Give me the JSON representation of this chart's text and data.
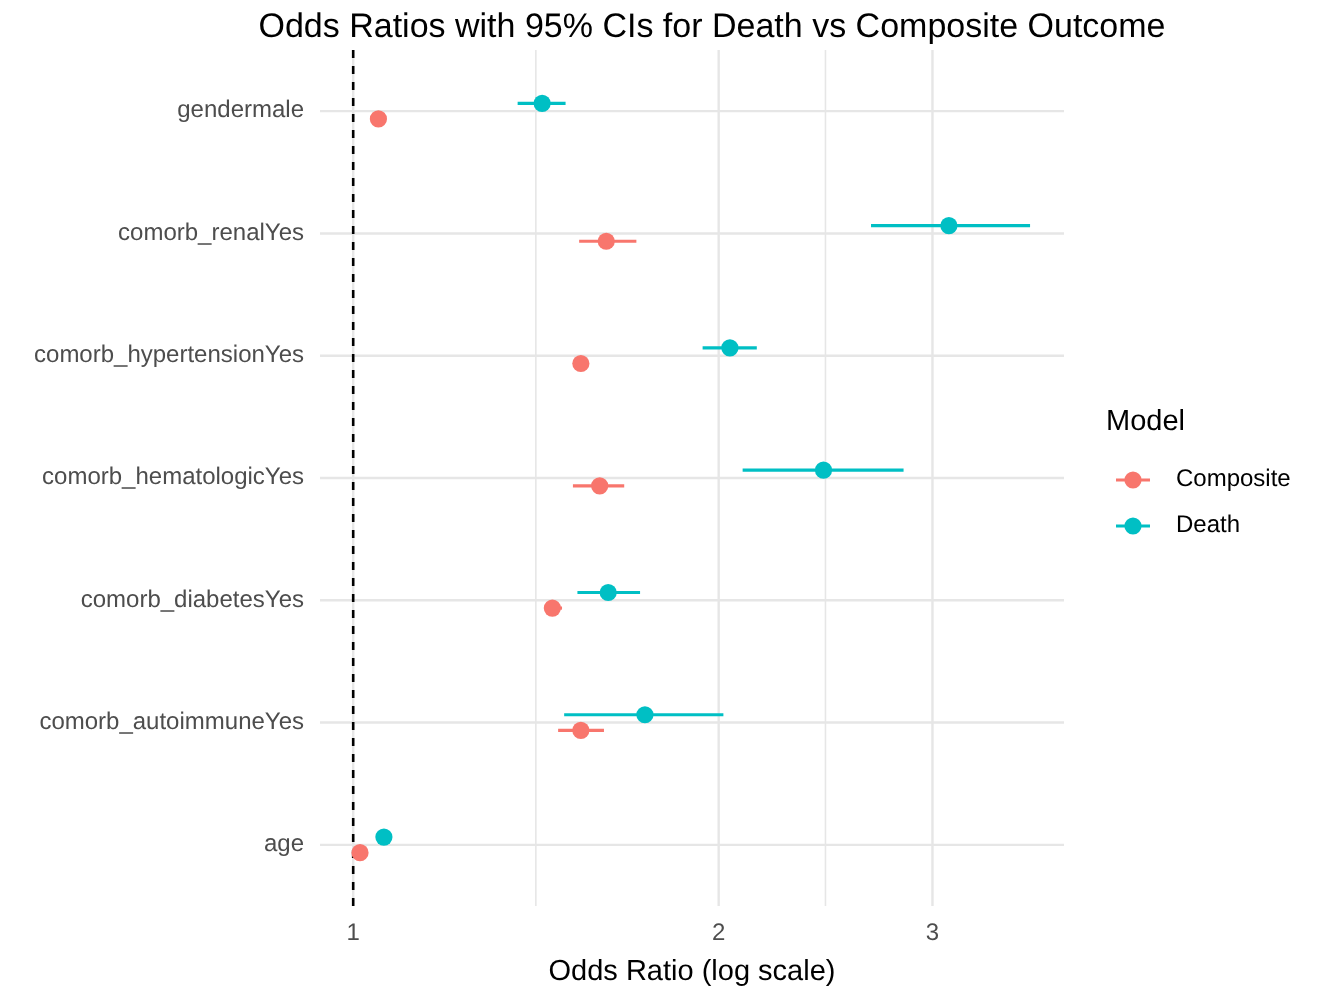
{
  "chart_data": {
    "type": "scatter",
    "orientation": "horizontal",
    "title": "Odds Ratios with 95% CIs for Death vs Composite Outcome",
    "xlabel": "Odds Ratio (log scale)",
    "legend_title": "Model",
    "legend": "right",
    "grid": true,
    "log": "x",
    "marker": "circle",
    "categories": [
      "gendermale",
      "comorb_renalYes",
      "comorb_hypertensionYes",
      "comorb_hematologicYes",
      "comorb_diabetesYes",
      "comorb_autoimmuneYes",
      "age"
    ],
    "xlim": [
      0.939,
      3.85
    ],
    "xticks": [
      1,
      {
        "value": 1.414,
        "label": null
      },
      2,
      {
        "value": 2.449,
        "label": null
      },
      3
    ],
    "ref_lines": [
      {
        "axis": "x",
        "value": 1,
        "line_style": "dashed",
        "color": "#000000"
      }
    ],
    "series": [
      {
        "name": "Composite",
        "color": "#f8766d",
        "values": [
          1.049,
          1.616,
          1.54,
          1.596,
          1.459,
          1.54,
          1.013
        ],
        "errors": [
          null,
          [
            1.535,
            1.711
          ],
          null,
          [
            1.517,
            1.672
          ],
          [
            1.443,
            1.486
          ],
          [
            1.475,
            1.609
          ],
          null
        ]
      },
      {
        "name": "Death",
        "color": "#00bfc4",
        "values": [
          1.431,
          3.095,
          2.043,
          2.44,
          1.622,
          1.739,
          1.06
        ],
        "errors": [
          [
            1.366,
            1.496
          ],
          [
            2.67,
            3.61
          ],
          [
            1.94,
            2.15
          ],
          [
            2.093,
            2.84
          ],
          [
            1.53,
            1.723
          ],
          [
            1.492,
            2.018
          ],
          null
        ]
      }
    ]
  }
}
